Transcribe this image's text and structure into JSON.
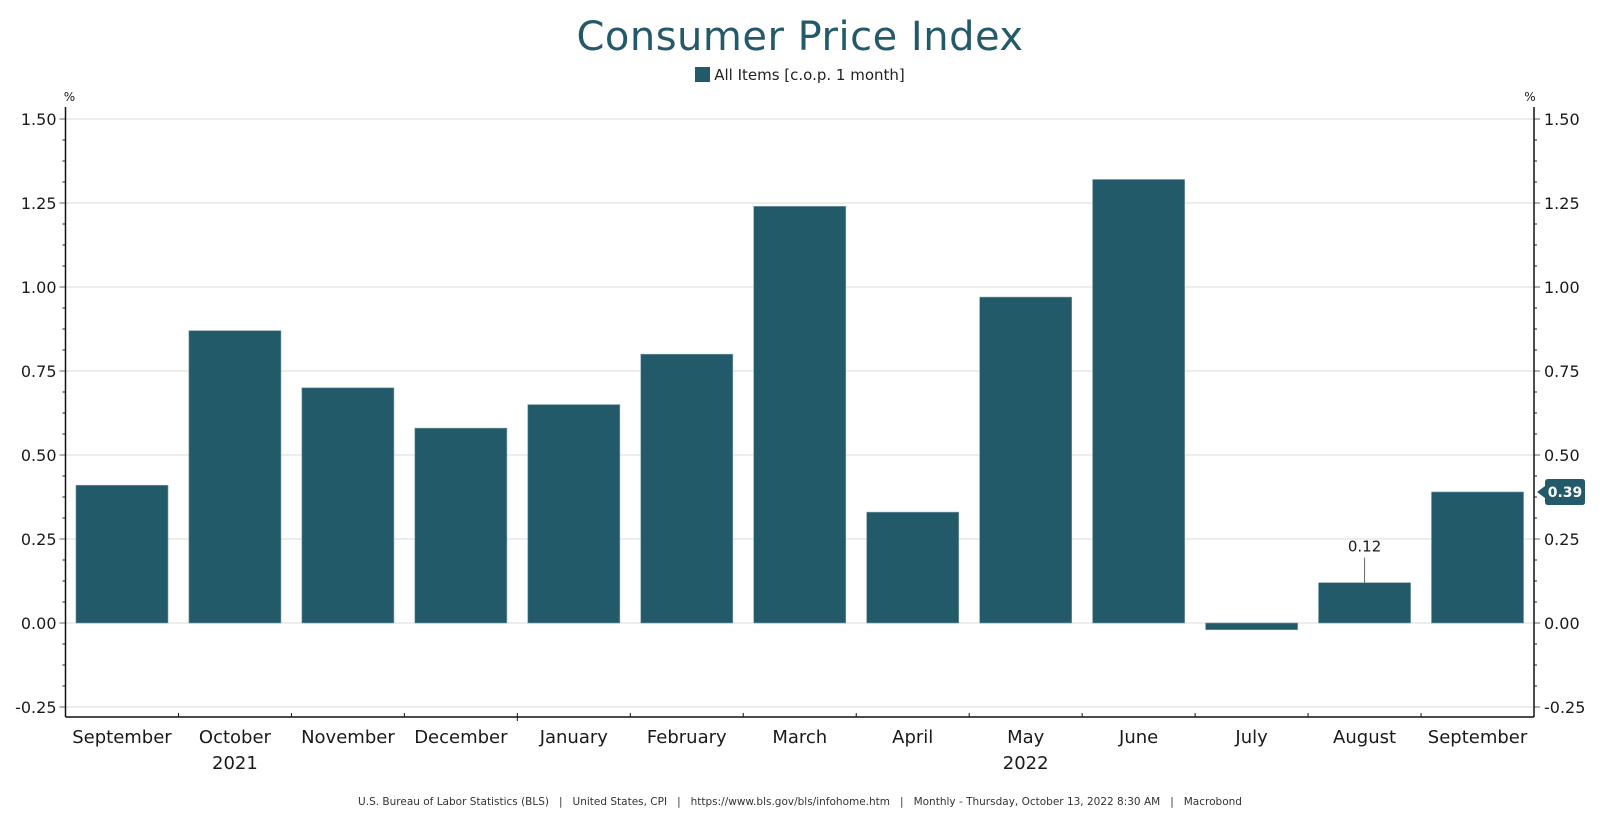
{
  "chart_data": {
    "type": "bar",
    "title": "Consumer Price Index",
    "legend": [
      {
        "name": "All Items [c.o.p. 1 month]",
        "color": "#235a69"
      }
    ],
    "legend_position": "top-center",
    "categories": [
      "September",
      "October",
      "November",
      "December",
      "January",
      "February",
      "March",
      "April",
      "May",
      "June",
      "July",
      "August",
      "September"
    ],
    "category_years": [
      {
        "label": "2021",
        "under": "October"
      },
      {
        "label": "2022",
        "under": "May"
      }
    ],
    "series": [
      {
        "name": "All Items [c.o.p. 1 month]",
        "values": [
          0.41,
          0.87,
          0.7,
          0.58,
          0.65,
          0.8,
          1.24,
          0.33,
          0.97,
          1.32,
          -0.02,
          0.12,
          0.39
        ]
      }
    ],
    "ylabel": "%",
    "ylabel_right": "%",
    "ylim": [
      -0.25,
      1.5
    ],
    "yticks": [
      "1.50",
      "1.25",
      "1.00",
      "0.75",
      "0.50",
      "0.25",
      "0.00",
      "-0.25"
    ],
    "ytick_values": [
      1.5,
      1.25,
      1.0,
      0.75,
      0.5,
      0.25,
      0.0,
      -0.25
    ],
    "grid": true,
    "annotations": [
      {
        "category_index": 11,
        "text": "0.12",
        "type": "callout"
      },
      {
        "category_index": 12,
        "text": "0.39",
        "type": "last-value-tag",
        "axis": "right"
      }
    ],
    "bar_color": "#235a69"
  },
  "footer": {
    "items": [
      "U.S. Bureau of Labor Statistics (BLS)",
      "United States, CPI",
      "https://www.bls.gov/bls/infohome.htm",
      "Monthly - Thursday, October 13, 2022 8:30 AM",
      "Macrobond"
    ],
    "separator": "|"
  }
}
